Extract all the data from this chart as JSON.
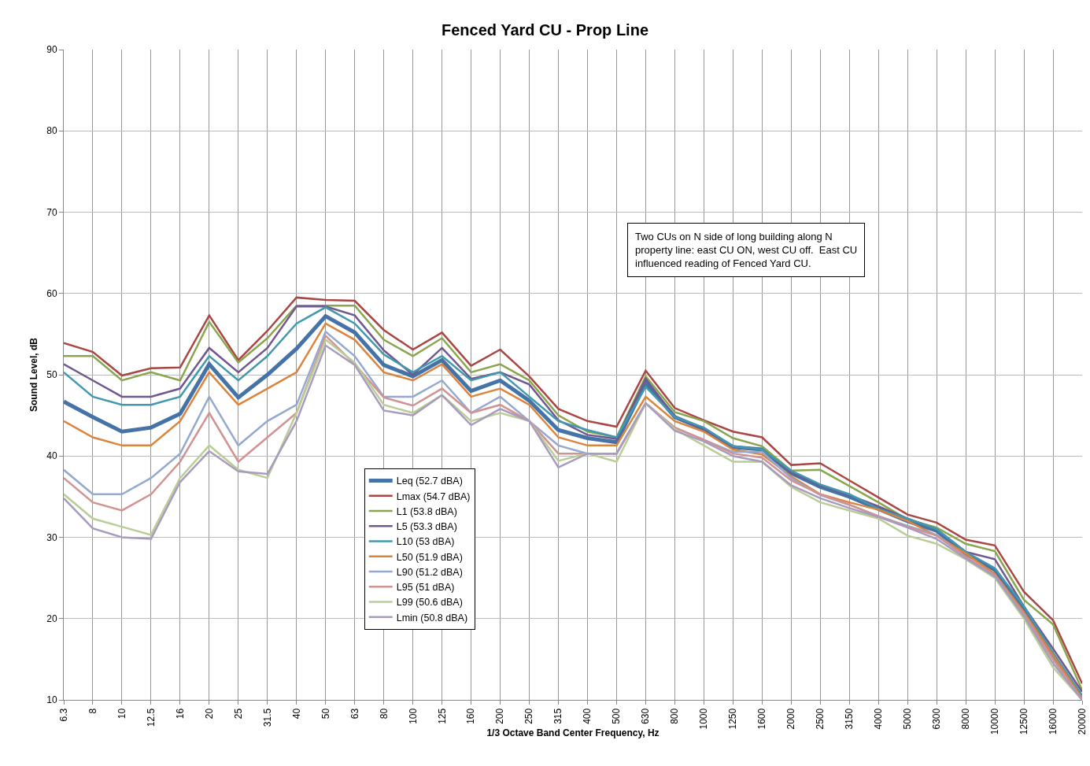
{
  "chart_data": {
    "type": "line",
    "title": "Fenced Yard CU - Prop Line",
    "xlabel": "1/3 Octave Band Center Frequency, Hz",
    "ylabel": "Sound Level, dB",
    "annotations": [
      "Two CUs on N side of long building along N property line: east CU ON, west CU off.  East CU influenced reading of Fenced Yard CU."
    ],
    "categories": [
      "6.3",
      "8",
      "10",
      "12.5",
      "16",
      "20",
      "25",
      "31.5",
      "40",
      "50",
      "63",
      "80",
      "100",
      "125",
      "160",
      "200",
      "250",
      "315",
      "400",
      "500",
      "630",
      "800",
      "1000",
      "1250",
      "1600",
      "2000",
      "2500",
      "3150",
      "4000",
      "5000",
      "6300",
      "8000",
      "10000",
      "12500",
      "16000",
      "20000"
    ],
    "ylim": [
      10,
      90
    ],
    "yticks": [
      10,
      20,
      30,
      40,
      50,
      60,
      70,
      80,
      90
    ],
    "grid": true,
    "legend": "bottom left",
    "marker": "none",
    "line_style": "solid",
    "series": [
      {
        "name": "Leq (52.7 dBA)",
        "color": "#4572a7",
        "values": [
          46.7,
          44.8,
          43,
          43.5,
          45.2,
          51.3,
          47.2,
          50,
          53.2,
          57.2,
          55.2,
          51.2,
          49.8,
          51.8,
          48,
          49.3,
          46.8,
          43.2,
          42.2,
          41.7,
          49,
          44.8,
          43.3,
          41.1,
          40.8,
          37.9,
          36.2,
          35,
          33.5,
          32,
          30.8,
          28,
          26,
          21,
          15.5,
          10.3
        ]
      },
      {
        "name": "Lmax (54.7 dBA)",
        "color": "#aa4643",
        "values": [
          53.9,
          52.8,
          49.9,
          50.8,
          50.9,
          57.3,
          51.8,
          55.4,
          59.5,
          59.2,
          59.1,
          55.5,
          53.1,
          55.2,
          51.1,
          53.1,
          49.8,
          45.8,
          44.3,
          43.6,
          50.5,
          45.9,
          44.4,
          43,
          42.3,
          38.9,
          39.1,
          37,
          34.9,
          32.8,
          31.8,
          29.7,
          29,
          23.3,
          19.8,
          12
        ]
      },
      {
        "name": "L1 (53.8 dBA)",
        "color": "#89a54e",
        "values": [
          52.3,
          52.3,
          49.3,
          50.3,
          49.3,
          56.5,
          51.5,
          54.5,
          58.5,
          58.5,
          58.5,
          54.3,
          52.3,
          54.5,
          50.3,
          51.3,
          49.3,
          45,
          43,
          42.3,
          49.8,
          45.4,
          44.3,
          42.2,
          41.2,
          38.2,
          38.3,
          36.3,
          34.3,
          32.2,
          31.2,
          29.2,
          28.3,
          22.3,
          19.3,
          11.2
        ]
      },
      {
        "name": "L5 (53.3 dBA)",
        "color": "#71588f",
        "values": [
          51.3,
          49.3,
          47.3,
          47.3,
          48.3,
          53.3,
          50.3,
          53.3,
          58.4,
          58.4,
          57.3,
          53,
          50,
          53.3,
          49.5,
          50.3,
          48.8,
          44.4,
          42.6,
          42.1,
          49.5,
          44.8,
          43.3,
          41.2,
          40.8,
          38,
          36.4,
          35.2,
          33.8,
          32.3,
          31,
          28.2,
          27.3,
          21.5,
          16.3,
          11
        ]
      },
      {
        "name": "L10 (53 dBA)",
        "color": "#4198af",
        "values": [
          50.3,
          47.3,
          46.3,
          46.3,
          47.3,
          52.3,
          49.3,
          52.3,
          56.3,
          58.3,
          56.3,
          52.5,
          50.3,
          52.3,
          49.3,
          50.3,
          47.3,
          44.3,
          43.2,
          42.3,
          48.5,
          44.8,
          43.5,
          41.2,
          40.8,
          38.2,
          36.5,
          35.3,
          33.5,
          32.3,
          31,
          28.2,
          26.2,
          21.5,
          15.8,
          10.5
        ]
      },
      {
        "name": "L50 (51.9 dBA)",
        "color": "#db843d",
        "values": [
          44.3,
          42.3,
          41.3,
          41.3,
          44.3,
          50.3,
          46.3,
          48.3,
          50.3,
          56.3,
          54.3,
          50.3,
          49.3,
          51.3,
          47.3,
          48.3,
          46.3,
          42.3,
          41.3,
          41.3,
          47.3,
          44.3,
          43,
          40.8,
          40.2,
          37.5,
          35.3,
          34.3,
          33.4,
          32,
          30.2,
          28,
          25.5,
          20.8,
          15.5,
          10.2
        ]
      },
      {
        "name": "L90 (51.2 dBA)",
        "color": "#93a9cf",
        "values": [
          38.3,
          35.3,
          35.3,
          37.3,
          40.3,
          47.3,
          41.3,
          44.3,
          46.3,
          55.3,
          52.3,
          47.3,
          47.3,
          49.3,
          45.3,
          47.3,
          44.3,
          41.3,
          40.3,
          40.3,
          46.5,
          43.5,
          42,
          40.5,
          40.5,
          37.3,
          35.2,
          34,
          32.6,
          31.4,
          30.3,
          27.6,
          25.3,
          20.5,
          15,
          10
        ]
      },
      {
        "name": "L95 (51 dBA)",
        "color": "#d19392",
        "values": [
          37.3,
          34.3,
          33.3,
          35.3,
          39.3,
          45.3,
          39.3,
          42.3,
          45.3,
          54.8,
          51.3,
          47.2,
          46.2,
          48.3,
          45.3,
          46.3,
          44.3,
          40.3,
          40.3,
          40.3,
          46.5,
          43.5,
          42,
          40.3,
          39.8,
          37,
          35.3,
          34,
          32.6,
          31.3,
          30.2,
          27.6,
          25.3,
          20.5,
          15,
          10
        ]
      },
      {
        "name": "L99 (50.6 dBA)",
        "color": "#b9cd96",
        "values": [
          35.3,
          32.3,
          31.3,
          30.3,
          37.3,
          41.3,
          38.3,
          37.3,
          45.3,
          54.3,
          51.5,
          46.3,
          45.3,
          47.5,
          44.3,
          45.3,
          44.3,
          39.4,
          40.3,
          39.3,
          46.5,
          43.3,
          41.3,
          39.3,
          39.3,
          36.2,
          34.3,
          33.3,
          32.3,
          30.2,
          29.2,
          27.3,
          25,
          20,
          14,
          10
        ]
      },
      {
        "name": "Lmin (50.8 dBA)",
        "color": "#a99bbd",
        "values": [
          34.8,
          31.1,
          30,
          29.8,
          36.8,
          40.6,
          38.1,
          37.8,
          44.3,
          53.6,
          51.2,
          45.6,
          45,
          47.5,
          43.8,
          45.8,
          44.3,
          38.6,
          40.3,
          40.3,
          46.5,
          43.1,
          41.8,
          40,
          39.3,
          36.4,
          34.8,
          33.6,
          32.5,
          31.2,
          29.8,
          27.4,
          25.2,
          20.3,
          14.5,
          10
        ]
      }
    ]
  }
}
